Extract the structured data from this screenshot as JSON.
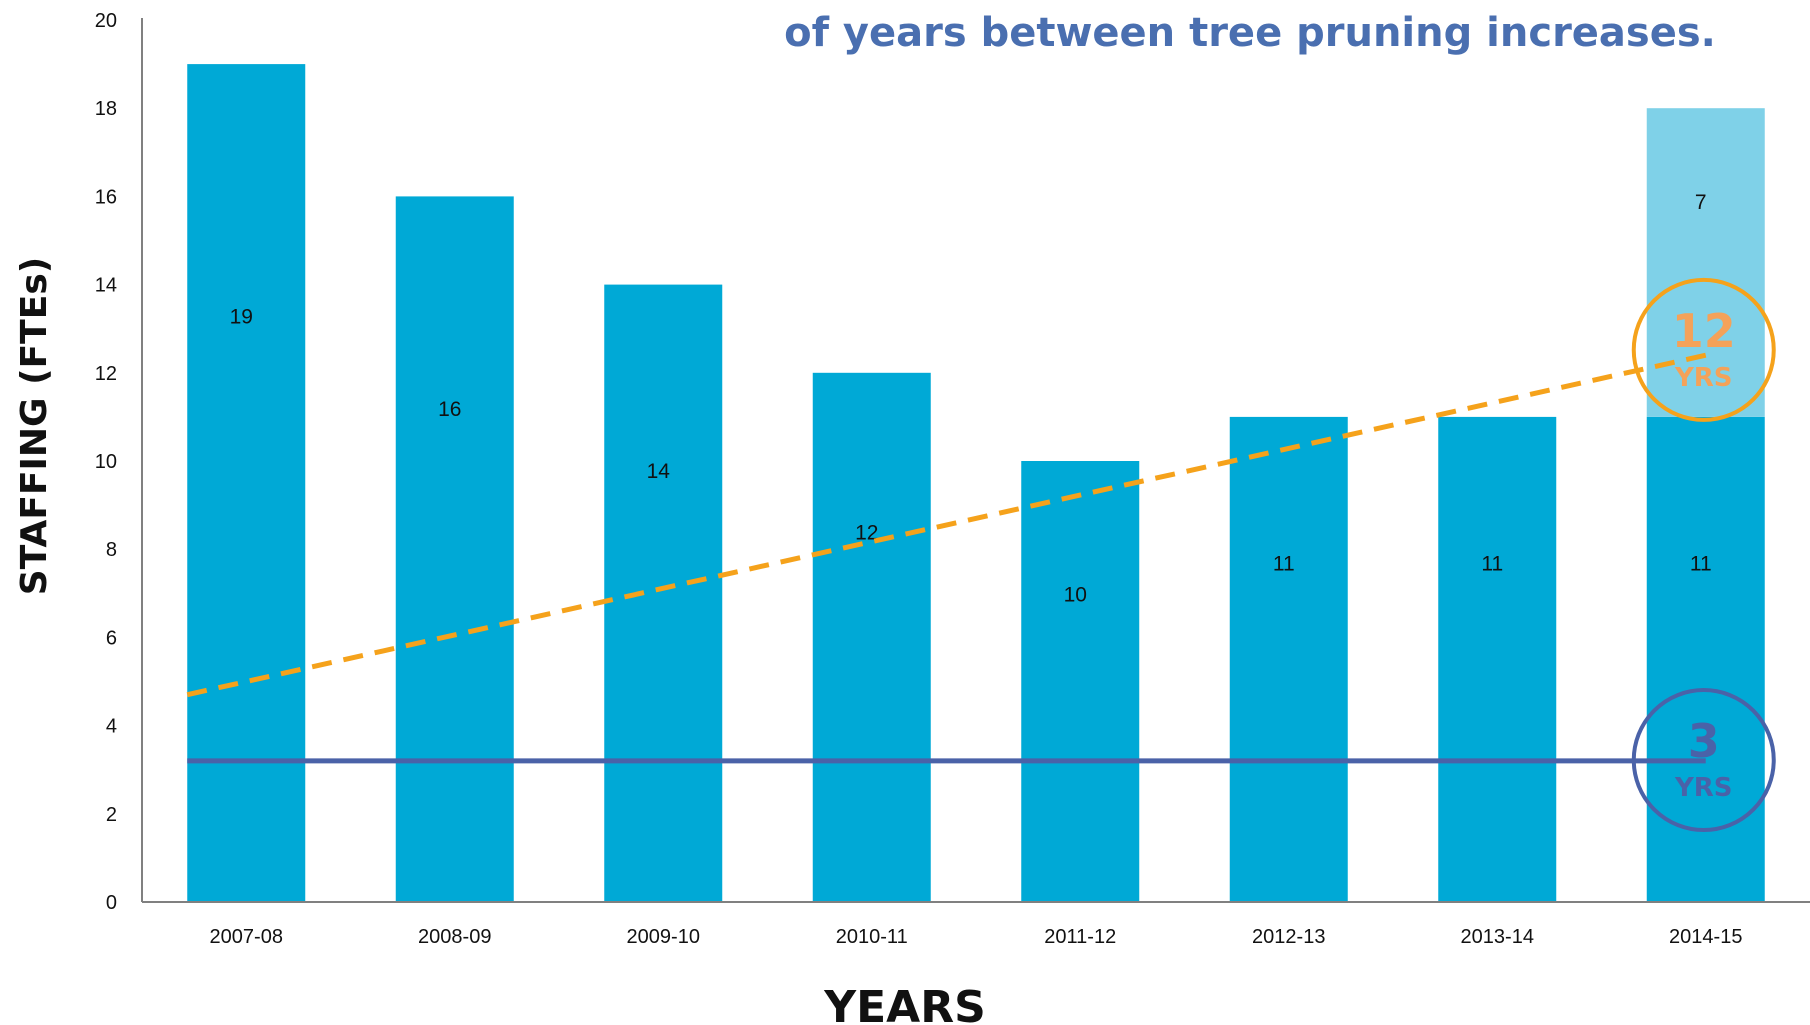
{
  "chart_data": {
    "type": "bar",
    "title": "of years between tree pruning increases.",
    "ylabel": "STAFFING (FTEs)",
    "xlabel": "YEARS",
    "ylim": [
      0,
      20
    ],
    "yticks": [
      0,
      2,
      4,
      6,
      8,
      10,
      12,
      14,
      16,
      18,
      20
    ],
    "categories": [
      "2007-08",
      "2008-09",
      "2009-10",
      "2010-11",
      "2011-12",
      "2012-13",
      "2013-14",
      "2014-15"
    ],
    "series": [
      {
        "values": [
          19,
          16,
          14,
          12,
          10,
          11,
          11,
          11
        ],
        "color": "#00a9d6"
      },
      {
        "values": [
          0,
          0,
          0,
          0,
          0,
          0,
          0,
          7
        ],
        "color": "#7fd1e8"
      }
    ],
    "data_labels": [
      [
        "19",
        "16",
        "14",
        "12",
        "10",
        "11",
        "11",
        "11"
      ],
      [
        "",
        "",
        "",
        "",
        "",
        "",
        "",
        "7"
      ]
    ],
    "trend_lines": [
      {
        "style": "dashed",
        "color": "#f5a21b",
        "y_start": 4.7,
        "y_end": 12.4
      },
      {
        "style": "solid",
        "color": "#4a62a8",
        "y_start": 3.2,
        "y_end": 3.2
      }
    ],
    "badges": [
      {
        "value": "12",
        "unit": "YRS",
        "color": "#f5a21b",
        "text_color": "#f4a259",
        "y": 12.7
      },
      {
        "value": "3",
        "unit": "YRS",
        "color": "#4a62a8",
        "text_color": "#4a62a8",
        "y": 3.4
      }
    ],
    "grid": false,
    "legend": "none"
  }
}
